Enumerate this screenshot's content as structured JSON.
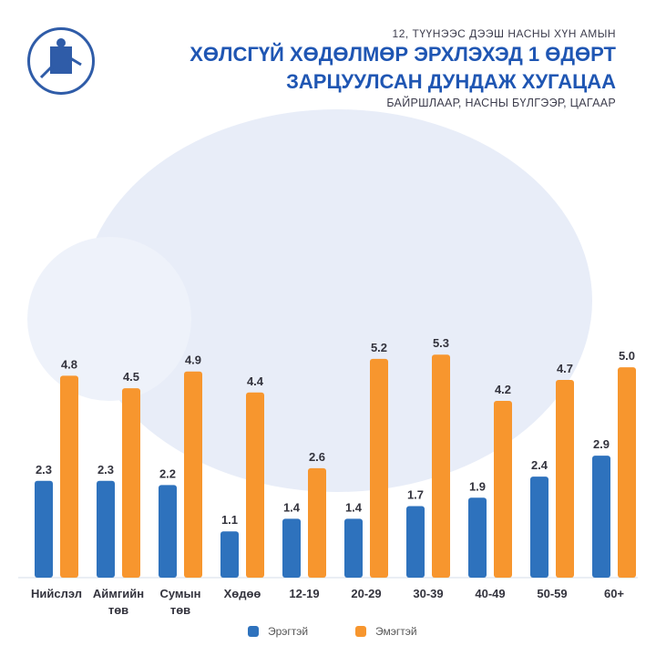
{
  "header": {
    "subtitle_top": "12, ТҮҮНЭЭС ДЭЭШ НАСНЫ ХҮН АМЫН",
    "title_line1": "ХӨЛСГҮЙ ХӨДӨЛМӨР ЭРХЛЭХЭД 1 ӨДӨРТ",
    "title_line2": "ЗАРЦУУЛСАН ДУНДАЖ ХУГАЦАА",
    "subtitle_bottom": "БАЙРШЛААР, НАСНЫ БҮЛГЭЭР, ЦАГААР"
  },
  "colors": {
    "male": "#2e72bd",
    "female": "#f7962e",
    "title": "#1f56b3"
  },
  "chart_data": {
    "type": "bar",
    "categories": [
      "Нийслэл",
      "Аймгийн төв",
      "Сумын төв",
      "Хөдөө",
      "12-19",
      "20-29",
      "30-39",
      "40-49",
      "50-59",
      "60+"
    ],
    "series": [
      {
        "name": "Эрэгтэй",
        "values": [
          2.3,
          2.3,
          2.2,
          1.1,
          1.4,
          1.4,
          1.7,
          1.9,
          2.4,
          2.9
        ]
      },
      {
        "name": "Эмэгтэй",
        "values": [
          4.8,
          4.5,
          4.9,
          4.4,
          2.6,
          5.2,
          5.3,
          4.2,
          4.7,
          5.0
        ]
      }
    ],
    "ylim": [
      0,
      5.5
    ],
    "legend": "bottom"
  },
  "legend": {
    "male": "Эрэгтэй",
    "female": "Эмэгтэй"
  }
}
